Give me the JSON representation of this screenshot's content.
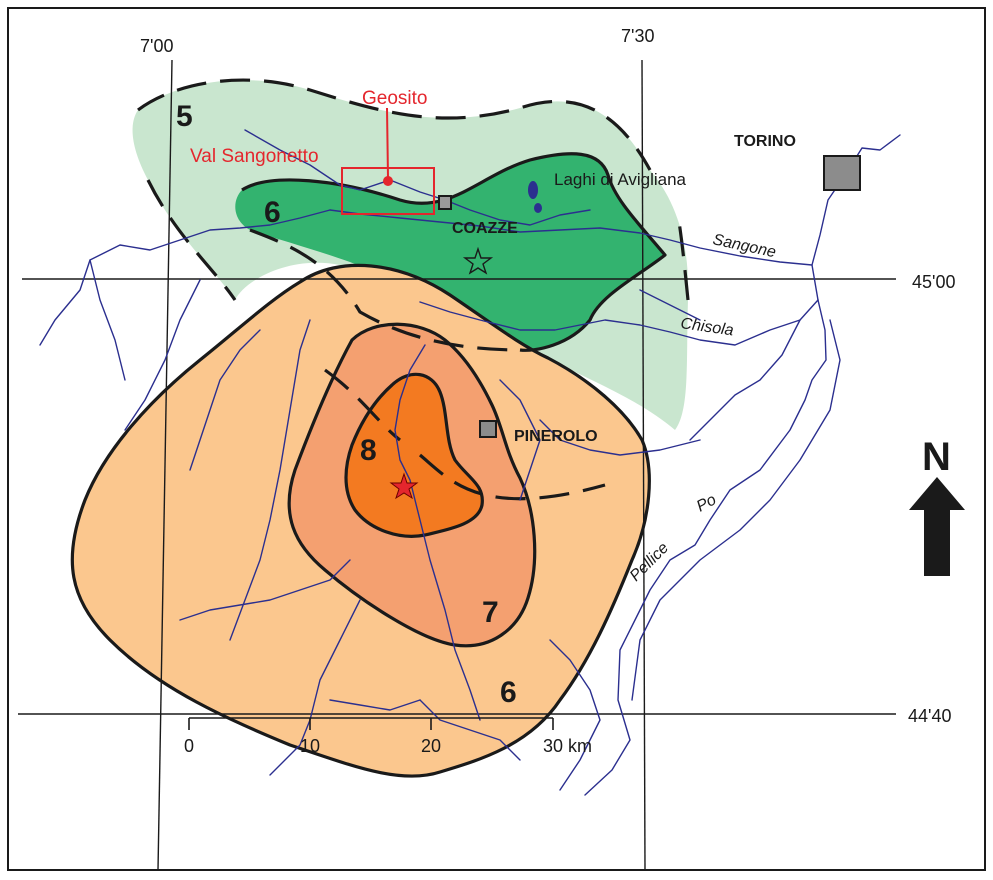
{
  "grid": {
    "lon_left": "7'00",
    "lon_right": "7'30",
    "lat_top": "45'00",
    "lat_bottom": "44'40"
  },
  "labels": {
    "geosito": "Geosito",
    "val_sangonetto": "Val Sangonetto",
    "laghi": "Laghi di Avigliana",
    "torino": "TORINO",
    "coazze": "COAZZE",
    "pinerolo": "PINEROLO",
    "north": "N"
  },
  "rivers": {
    "sangone": "Sangone",
    "chisola": "Chisola",
    "po": "Po",
    "pellice": "Pellice"
  },
  "intensity_zones": {
    "zone5": "5",
    "zone6_green": "6",
    "zone8": "8",
    "zone7": "7",
    "zone6_orange": "6"
  },
  "scale_bar": {
    "t0": "0",
    "t10": "10",
    "t20": "20",
    "t30": "30 km"
  },
  "colors": {
    "light_green": "#c9e6cf",
    "dark_green": "#33b36f",
    "light_orange": "#fbc78e",
    "mid_orange": "#f4a070",
    "dark_orange": "#f37a21",
    "river_blue": "#2b2f8f",
    "accent_red": "#e4262d"
  }
}
